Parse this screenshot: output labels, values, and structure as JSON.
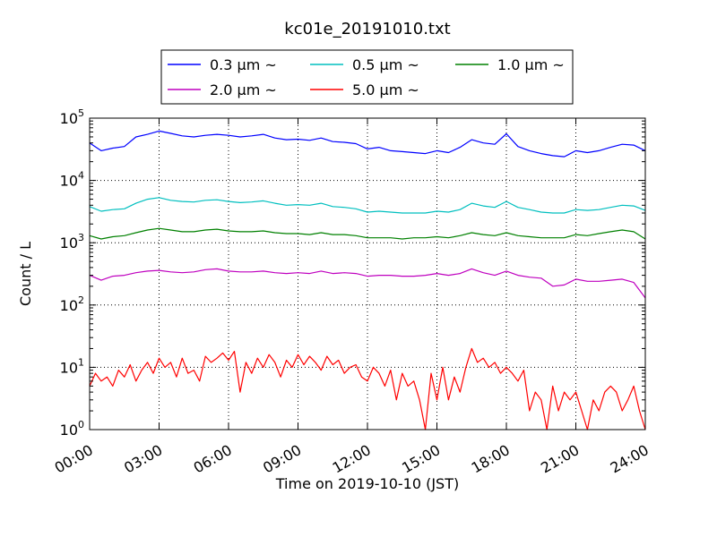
{
  "chart_data": {
    "type": "line",
    "title": "kc01e_20191010.txt",
    "xlabel": "Time on 2019-10-10 (JST)",
    "ylabel": "Count / L",
    "y_scale": "log",
    "ylim": [
      1,
      100000
    ],
    "xlim_hours": [
      0,
      24
    ],
    "grid": true,
    "legend_position": "top-center",
    "x_ticks": [
      "00:00",
      "03:00",
      "06:00",
      "09:00",
      "12:00",
      "15:00",
      "18:00",
      "21:00",
      "24:00"
    ],
    "x_tick_hours": [
      0,
      3,
      6,
      9,
      12,
      15,
      18,
      21,
      24
    ],
    "y_ticks": [
      {
        "value": 1,
        "base": "10",
        "exp": "0"
      },
      {
        "value": 10,
        "base": "10",
        "exp": "1"
      },
      {
        "value": 100,
        "base": "10",
        "exp": "2"
      },
      {
        "value": 1000,
        "base": "10",
        "exp": "3"
      },
      {
        "value": 10000,
        "base": "10",
        "exp": "4"
      },
      {
        "value": 100000,
        "base": "10",
        "exp": "5"
      }
    ],
    "series": [
      {
        "name": "0.3 µm ~",
        "legend_num": "0.3",
        "color": "#0000ff",
        "points": [
          [
            0,
            40000
          ],
          [
            0.5,
            30000
          ],
          [
            1,
            33000
          ],
          [
            1.5,
            35000
          ],
          [
            2,
            50000
          ],
          [
            2.5,
            55000
          ],
          [
            3,
            62000
          ],
          [
            3.5,
            57000
          ],
          [
            4,
            52000
          ],
          [
            4.5,
            50000
          ],
          [
            5,
            53000
          ],
          [
            5.5,
            55000
          ],
          [
            6,
            53000
          ],
          [
            6.5,
            50000
          ],
          [
            7,
            52000
          ],
          [
            7.5,
            55000
          ],
          [
            8,
            48000
          ],
          [
            8.5,
            45000
          ],
          [
            9,
            46000
          ],
          [
            9.5,
            44000
          ],
          [
            10,
            48000
          ],
          [
            10.5,
            42000
          ],
          [
            11,
            41000
          ],
          [
            11.5,
            39000
          ],
          [
            12,
            32000
          ],
          [
            12.5,
            34000
          ],
          [
            13,
            30000
          ],
          [
            13.5,
            29000
          ],
          [
            14,
            28000
          ],
          [
            14.5,
            27000
          ],
          [
            15,
            30000
          ],
          [
            15.5,
            28000
          ],
          [
            16,
            34000
          ],
          [
            16.5,
            45000
          ],
          [
            17,
            40000
          ],
          [
            17.5,
            38000
          ],
          [
            18,
            56000
          ],
          [
            18.5,
            35000
          ],
          [
            19,
            30000
          ],
          [
            19.5,
            27000
          ],
          [
            20,
            25000
          ],
          [
            20.5,
            24000
          ],
          [
            21,
            30000
          ],
          [
            21.5,
            28000
          ],
          [
            22,
            30000
          ],
          [
            22.5,
            34000
          ],
          [
            23,
            38000
          ],
          [
            23.5,
            37000
          ],
          [
            24,
            30000
          ]
        ]
      },
      {
        "name": "0.5 µm ~",
        "legend_num": "0.5",
        "color": "#00bfbf",
        "points": [
          [
            0,
            3800
          ],
          [
            0.5,
            3200
          ],
          [
            1,
            3400
          ],
          [
            1.5,
            3500
          ],
          [
            2,
            4300
          ],
          [
            2.5,
            5000
          ],
          [
            3,
            5300
          ],
          [
            3.5,
            4800
          ],
          [
            4,
            4600
          ],
          [
            4.5,
            4500
          ],
          [
            5,
            4800
          ],
          [
            5.5,
            4900
          ],
          [
            6,
            4600
          ],
          [
            6.5,
            4400
          ],
          [
            7,
            4500
          ],
          [
            7.5,
            4700
          ],
          [
            8,
            4300
          ],
          [
            8.5,
            4000
          ],
          [
            9,
            4100
          ],
          [
            9.5,
            4000
          ],
          [
            10,
            4300
          ],
          [
            10.5,
            3800
          ],
          [
            11,
            3700
          ],
          [
            11.5,
            3500
          ],
          [
            12,
            3100
          ],
          [
            12.5,
            3200
          ],
          [
            13,
            3100
          ],
          [
            13.5,
            3000
          ],
          [
            14,
            3000
          ],
          [
            14.5,
            3000
          ],
          [
            15,
            3200
          ],
          [
            15.5,
            3100
          ],
          [
            16,
            3400
          ],
          [
            16.5,
            4300
          ],
          [
            17,
            3900
          ],
          [
            17.5,
            3700
          ],
          [
            18,
            4600
          ],
          [
            18.5,
            3700
          ],
          [
            19,
            3400
          ],
          [
            19.5,
            3100
          ],
          [
            20,
            3000
          ],
          [
            20.5,
            3000
          ],
          [
            21,
            3400
          ],
          [
            21.5,
            3300
          ],
          [
            22,
            3400
          ],
          [
            22.5,
            3700
          ],
          [
            23,
            4000
          ],
          [
            23.5,
            3900
          ],
          [
            24,
            3300
          ]
        ]
      },
      {
        "name": "1.0 µm ~",
        "legend_num": "1.0",
        "color": "#008000",
        "points": [
          [
            0,
            1300
          ],
          [
            0.5,
            1150
          ],
          [
            1,
            1250
          ],
          [
            1.5,
            1300
          ],
          [
            2,
            1450
          ],
          [
            2.5,
            1600
          ],
          [
            3,
            1700
          ],
          [
            3.5,
            1600
          ],
          [
            4,
            1500
          ],
          [
            4.5,
            1500
          ],
          [
            5,
            1600
          ],
          [
            5.5,
            1650
          ],
          [
            6,
            1550
          ],
          [
            6.5,
            1500
          ],
          [
            7,
            1500
          ],
          [
            7.5,
            1550
          ],
          [
            8,
            1450
          ],
          [
            8.5,
            1400
          ],
          [
            9,
            1400
          ],
          [
            9.5,
            1350
          ],
          [
            10,
            1450
          ],
          [
            10.5,
            1350
          ],
          [
            11,
            1350
          ],
          [
            11.5,
            1300
          ],
          [
            12,
            1200
          ],
          [
            12.5,
            1200
          ],
          [
            13,
            1200
          ],
          [
            13.5,
            1150
          ],
          [
            14,
            1200
          ],
          [
            14.5,
            1200
          ],
          [
            15,
            1250
          ],
          [
            15.5,
            1200
          ],
          [
            16,
            1300
          ],
          [
            16.5,
            1450
          ],
          [
            17,
            1350
          ],
          [
            17.5,
            1300
          ],
          [
            18,
            1450
          ],
          [
            18.5,
            1300
          ],
          [
            19,
            1250
          ],
          [
            19.5,
            1200
          ],
          [
            20,
            1200
          ],
          [
            20.5,
            1200
          ],
          [
            21,
            1350
          ],
          [
            21.5,
            1300
          ],
          [
            22,
            1400
          ],
          [
            22.5,
            1500
          ],
          [
            23,
            1600
          ],
          [
            23.5,
            1500
          ],
          [
            24,
            1150
          ]
        ]
      },
      {
        "name": "2.0 µm ~",
        "legend_num": "2.0",
        "color": "#bf00bf",
        "points": [
          [
            0,
            300
          ],
          [
            0.5,
            250
          ],
          [
            1,
            290
          ],
          [
            1.5,
            300
          ],
          [
            2,
            330
          ],
          [
            2.5,
            350
          ],
          [
            3,
            360
          ],
          [
            3.5,
            340
          ],
          [
            4,
            330
          ],
          [
            4.5,
            340
          ],
          [
            5,
            370
          ],
          [
            5.5,
            380
          ],
          [
            6,
            350
          ],
          [
            6.5,
            340
          ],
          [
            7,
            340
          ],
          [
            7.5,
            350
          ],
          [
            8,
            330
          ],
          [
            8.5,
            320
          ],
          [
            9,
            330
          ],
          [
            9.5,
            320
          ],
          [
            10,
            350
          ],
          [
            10.5,
            320
          ],
          [
            11,
            330
          ],
          [
            11.5,
            320
          ],
          [
            12,
            290
          ],
          [
            12.5,
            300
          ],
          [
            13,
            300
          ],
          [
            13.5,
            290
          ],
          [
            14,
            290
          ],
          [
            14.5,
            300
          ],
          [
            15,
            320
          ],
          [
            15.5,
            300
          ],
          [
            16,
            320
          ],
          [
            16.5,
            380
          ],
          [
            17,
            330
          ],
          [
            17.5,
            300
          ],
          [
            18,
            350
          ],
          [
            18.5,
            300
          ],
          [
            19,
            280
          ],
          [
            19.5,
            270
          ],
          [
            20,
            200
          ],
          [
            20.5,
            210
          ],
          [
            21,
            260
          ],
          [
            21.5,
            240
          ],
          [
            22,
            240
          ],
          [
            22.5,
            250
          ],
          [
            23,
            260
          ],
          [
            23.5,
            230
          ],
          [
            24,
            130
          ]
        ]
      },
      {
        "name": "5.0 µm ~",
        "legend_num": "5.0",
        "color": "#ff0000",
        "points": [
          [
            0,
            5
          ],
          [
            0.25,
            8
          ],
          [
            0.5,
            6
          ],
          [
            0.75,
            7
          ],
          [
            1,
            5
          ],
          [
            1.25,
            9
          ],
          [
            1.5,
            7
          ],
          [
            1.75,
            11
          ],
          [
            2,
            6
          ],
          [
            2.25,
            9
          ],
          [
            2.5,
            12
          ],
          [
            2.75,
            8
          ],
          [
            3,
            14
          ],
          [
            3.25,
            10
          ],
          [
            3.5,
            12
          ],
          [
            3.75,
            7
          ],
          [
            4,
            14
          ],
          [
            4.25,
            8
          ],
          [
            4.5,
            9
          ],
          [
            4.75,
            6
          ],
          [
            5,
            15
          ],
          [
            5.25,
            12
          ],
          [
            5.5,
            14
          ],
          [
            5.75,
            17
          ],
          [
            6,
            13
          ],
          [
            6.25,
            18
          ],
          [
            6.5,
            4
          ],
          [
            6.75,
            12
          ],
          [
            7,
            8
          ],
          [
            7.25,
            14
          ],
          [
            7.5,
            10
          ],
          [
            7.75,
            16
          ],
          [
            8,
            12
          ],
          [
            8.25,
            7
          ],
          [
            8.5,
            13
          ],
          [
            8.75,
            10
          ],
          [
            9,
            16
          ],
          [
            9.25,
            11
          ],
          [
            9.5,
            15
          ],
          [
            9.75,
            12
          ],
          [
            10,
            9
          ],
          [
            10.25,
            15
          ],
          [
            10.5,
            11
          ],
          [
            10.75,
            13
          ],
          [
            11,
            8
          ],
          [
            11.25,
            10
          ],
          [
            11.5,
            11
          ],
          [
            11.75,
            7
          ],
          [
            12,
            6
          ],
          [
            12.25,
            10
          ],
          [
            12.5,
            8
          ],
          [
            12.75,
            5
          ],
          [
            13,
            9
          ],
          [
            13.25,
            3
          ],
          [
            13.5,
            8
          ],
          [
            13.75,
            5
          ],
          [
            14,
            6
          ],
          [
            14.25,
            3
          ],
          [
            14.5,
            1
          ],
          [
            14.75,
            8
          ],
          [
            15,
            3
          ],
          [
            15.25,
            10
          ],
          [
            15.5,
            3
          ],
          [
            15.75,
            7
          ],
          [
            16,
            4
          ],
          [
            16.25,
            10
          ],
          [
            16.5,
            20
          ],
          [
            16.75,
            12
          ],
          [
            17,
            14
          ],
          [
            17.25,
            10
          ],
          [
            17.5,
            12
          ],
          [
            17.75,
            8
          ],
          [
            18,
            10
          ],
          [
            18.25,
            8
          ],
          [
            18.5,
            6
          ],
          [
            18.75,
            9
          ],
          [
            19,
            2
          ],
          [
            19.25,
            4
          ],
          [
            19.5,
            3
          ],
          [
            19.75,
            1
          ],
          [
            20,
            5
          ],
          [
            20.25,
            2
          ],
          [
            20.5,
            4
          ],
          [
            20.75,
            3
          ],
          [
            21,
            4
          ],
          [
            21.25,
            2
          ],
          [
            21.5,
            1
          ],
          [
            21.75,
            3
          ],
          [
            22,
            2
          ],
          [
            22.25,
            4
          ],
          [
            22.5,
            5
          ],
          [
            22.75,
            4
          ],
          [
            23,
            2
          ],
          [
            23.25,
            3
          ],
          [
            23.5,
            5
          ],
          [
            23.75,
            2
          ],
          [
            24,
            1
          ]
        ]
      }
    ]
  }
}
